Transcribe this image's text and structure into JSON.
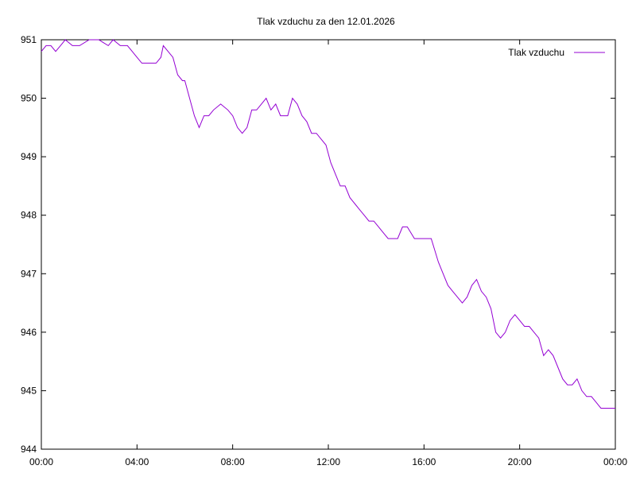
{
  "chart_data": {
    "type": "line",
    "title": "Tlak vzduchu za den 12.01.2026",
    "xlabel": "",
    "ylabel": "",
    "xlim_hours": [
      0,
      24
    ],
    "ylim": [
      944,
      951
    ],
    "grid": false,
    "legend_position": "top-right",
    "x_ticks": [
      {
        "hour": 0,
        "label": "00:00"
      },
      {
        "hour": 4,
        "label": "04:00"
      },
      {
        "hour": 8,
        "label": "08:00"
      },
      {
        "hour": 12,
        "label": "12:00"
      },
      {
        "hour": 16,
        "label": "16:00"
      },
      {
        "hour": 20,
        "label": "20:00"
      },
      {
        "hour": 24,
        "label": "00:00"
      }
    ],
    "y_ticks": [
      {
        "value": 944,
        "label": "944"
      },
      {
        "value": 945,
        "label": "945"
      },
      {
        "value": 946,
        "label": "946"
      },
      {
        "value": 947,
        "label": "947"
      },
      {
        "value": 948,
        "label": "948"
      },
      {
        "value": 949,
        "label": "949"
      },
      {
        "value": 950,
        "label": "950"
      },
      {
        "value": 951,
        "label": "951"
      }
    ],
    "series": [
      {
        "name": "Tlak vzduchu",
        "color": "#9400d3",
        "x_hours": [
          0.0,
          0.2,
          0.4,
          0.6,
          0.8,
          1.0,
          1.3,
          1.6,
          2.0,
          2.4,
          2.8,
          3.0,
          3.3,
          3.6,
          3.8,
          4.0,
          4.2,
          4.4,
          4.6,
          4.8,
          5.0,
          5.1,
          5.3,
          5.5,
          5.7,
          5.9,
          6.0,
          6.2,
          6.4,
          6.6,
          6.8,
          7.0,
          7.2,
          7.5,
          7.8,
          8.0,
          8.2,
          8.4,
          8.6,
          8.8,
          9.0,
          9.2,
          9.4,
          9.6,
          9.8,
          10.0,
          10.3,
          10.5,
          10.7,
          10.9,
          11.1,
          11.3,
          11.5,
          11.7,
          11.9,
          12.1,
          12.3,
          12.5,
          12.7,
          12.9,
          13.1,
          13.3,
          13.5,
          13.7,
          13.9,
          14.1,
          14.3,
          14.5,
          14.7,
          14.9,
          15.1,
          15.3,
          15.6,
          15.8,
          16.0,
          16.3,
          16.6,
          16.8,
          17.0,
          17.2,
          17.4,
          17.6,
          17.8,
          18.0,
          18.2,
          18.4,
          18.6,
          18.8,
          19.0,
          19.2,
          19.4,
          19.6,
          19.8,
          20.0,
          20.2,
          20.4,
          20.6,
          20.8,
          21.0,
          21.2,
          21.4,
          21.6,
          21.8,
          22.0,
          22.2,
          22.4,
          22.6,
          22.8,
          23.0,
          23.2,
          23.4,
          23.6,
          23.8,
          24.0
        ],
        "values": [
          950.8,
          950.9,
          950.9,
          950.8,
          950.9,
          951.0,
          950.9,
          950.9,
          951.0,
          951.0,
          950.9,
          951.0,
          950.9,
          950.9,
          950.8,
          950.7,
          950.6,
          950.6,
          950.6,
          950.6,
          950.7,
          950.9,
          950.8,
          950.7,
          950.4,
          950.3,
          950.3,
          950.0,
          949.7,
          949.5,
          949.7,
          949.7,
          949.8,
          949.9,
          949.8,
          949.7,
          949.5,
          949.4,
          949.5,
          949.8,
          949.8,
          949.9,
          950.0,
          949.8,
          949.9,
          949.7,
          949.7,
          950.0,
          949.9,
          949.7,
          949.6,
          949.4,
          949.4,
          949.3,
          949.2,
          948.9,
          948.7,
          948.5,
          948.5,
          948.3,
          948.2,
          948.1,
          948.0,
          947.9,
          947.9,
          947.8,
          947.7,
          947.6,
          947.6,
          947.6,
          947.8,
          947.8,
          947.6,
          947.6,
          947.6,
          947.6,
          947.2,
          947.0,
          946.8,
          946.7,
          946.6,
          946.5,
          946.6,
          946.8,
          946.9,
          946.7,
          946.6,
          946.4,
          946.0,
          945.9,
          946.0,
          946.2,
          946.3,
          946.2,
          946.1,
          946.1,
          946.0,
          945.9,
          945.6,
          945.7,
          945.6,
          945.4,
          945.2,
          945.1,
          945.1,
          945.2,
          945.0,
          944.9,
          944.9,
          944.8,
          944.7,
          944.7,
          944.7,
          944.7
        ]
      }
    ]
  }
}
